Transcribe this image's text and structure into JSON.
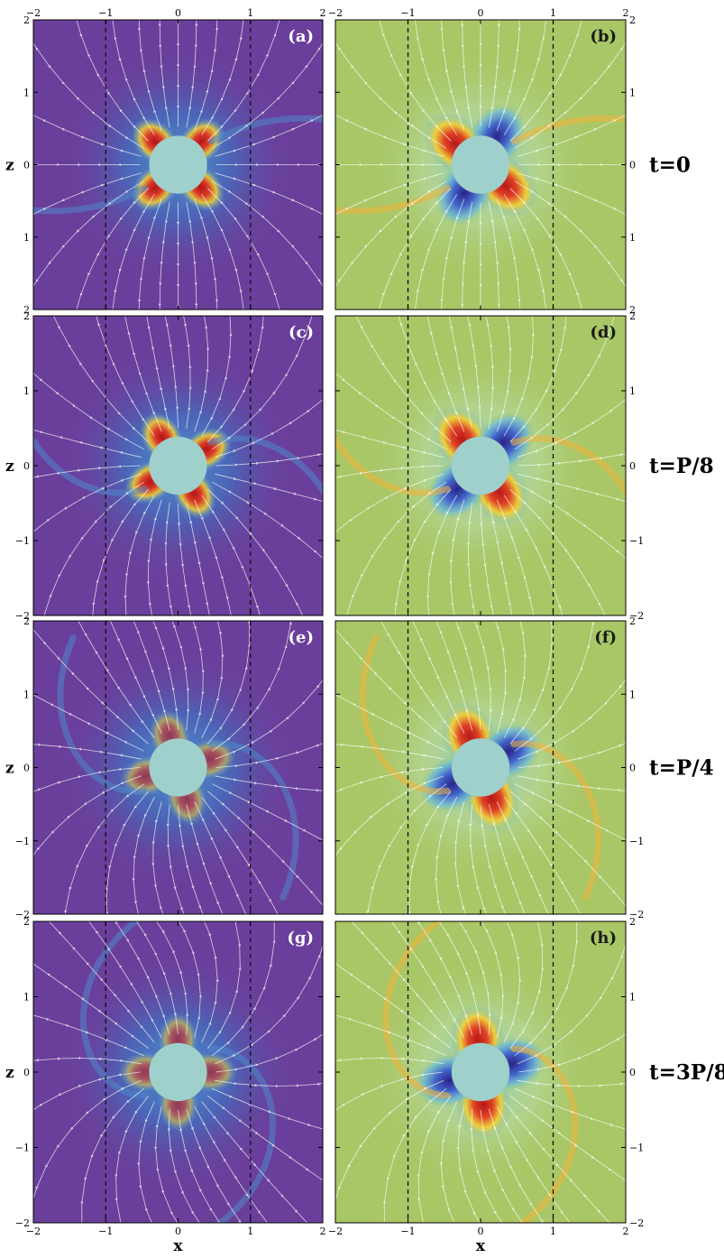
{
  "figure": {
    "x_axis_label": "x",
    "z_axis_label": "z",
    "time_labels": [
      "t=0",
      "t=P/8",
      "t=P/4",
      "t=3P/8"
    ],
    "colors": {
      "left_background": "#6a3f9b",
      "right_background": "#a9c766",
      "star": "#9fd0cc",
      "streamline": "#ffffff",
      "dashed_line": "#111111",
      "hot": "#d11e1e",
      "warm": "#f2c230",
      "cool": "#3a5fc8",
      "cold": "#2b1f8e"
    }
  },
  "chart_data": [
    {
      "type": "heatmap",
      "panel": "(a)",
      "column": "left",
      "time": "t=0",
      "xlim": [
        -2,
        2
      ],
      "ylim": [
        -2,
        2
      ],
      "x_ticks": [
        "-2",
        "-1",
        "0",
        "1",
        "2"
      ],
      "y_ticks": [
        "2",
        "1",
        "0",
        "1",
        "2"
      ],
      "dashed_lines_x": [
        -1,
        1
      ],
      "star_radius": 0.4,
      "twist_deg": 0,
      "colormap_background": "purple"
    },
    {
      "type": "heatmap",
      "panel": "(b)",
      "column": "right",
      "time": "t=0",
      "xlim": [
        -2,
        2
      ],
      "ylim": [
        -2,
        2
      ],
      "x_ticks": [
        "-2",
        "-1",
        "0",
        "1",
        "2"
      ],
      "y_ticks": [
        "2",
        "1",
        "0",
        "1",
        "2"
      ],
      "dashed_lines_x": [
        -1,
        1
      ],
      "star_radius": 0.4,
      "twist_deg": 0,
      "colormap_background": "green"
    },
    {
      "type": "heatmap",
      "panel": "(c)",
      "column": "left",
      "time": "t=P/8",
      "xlim": [
        -2,
        2
      ],
      "ylim": [
        -2,
        2
      ],
      "x_ticks": [
        "-2",
        "-1",
        "0",
        "1",
        "2"
      ],
      "y_ticks": [
        "2",
        "1",
        "0",
        "-1",
        "-2"
      ],
      "dashed_lines_x": [
        -1,
        1
      ],
      "star_radius": 0.4,
      "twist_deg": 15,
      "colormap_background": "purple"
    },
    {
      "type": "heatmap",
      "panel": "(d)",
      "column": "right",
      "time": "t=P/8",
      "xlim": [
        -2,
        2
      ],
      "ylim": [
        -2,
        2
      ],
      "x_ticks": [
        "-2",
        "-1",
        "0",
        "1",
        "2"
      ],
      "y_ticks": [
        "2",
        "1",
        "0",
        "-1",
        "-2"
      ],
      "dashed_lines_x": [
        -1,
        1
      ],
      "star_radius": 0.4,
      "twist_deg": 15,
      "colormap_background": "green"
    },
    {
      "type": "heatmap",
      "panel": "(e)",
      "column": "left",
      "time": "t=P/4",
      "xlim": [
        -2,
        2
      ],
      "ylim": [
        -2,
        2
      ],
      "x_ticks": [
        "-2",
        "-1",
        "0",
        "1",
        "2"
      ],
      "y_ticks": [
        "2",
        "1",
        "0",
        "-1",
        "-2"
      ],
      "dashed_lines_x": [
        -1,
        1
      ],
      "star_radius": 0.4,
      "twist_deg": 30,
      "colormap_background": "purple"
    },
    {
      "type": "heatmap",
      "panel": "(f)",
      "column": "right",
      "time": "t=P/4",
      "xlim": [
        -2,
        2
      ],
      "ylim": [
        -2,
        2
      ],
      "x_ticks": [
        "-2",
        "-1",
        "0",
        "1",
        "2"
      ],
      "y_ticks": [
        "2",
        "1",
        "0",
        "-1",
        "-2"
      ],
      "dashed_lines_x": [
        -1,
        1
      ],
      "star_radius": 0.4,
      "twist_deg": 30,
      "colormap_background": "green"
    },
    {
      "type": "heatmap",
      "panel": "(g)",
      "column": "left",
      "time": "t=3P/8",
      "xlim": [
        -2,
        2
      ],
      "ylim": [
        -2,
        2
      ],
      "x_ticks": [
        "-2",
        "-1",
        "0",
        "1",
        "2"
      ],
      "y_ticks": [
        "2",
        "1",
        "0",
        "-1",
        "-2"
      ],
      "dashed_lines_x": [
        -1,
        1
      ],
      "star_radius": 0.4,
      "twist_deg": 45,
      "colormap_background": "purple"
    },
    {
      "type": "heatmap",
      "panel": "(h)",
      "column": "right",
      "time": "t=3P/8",
      "xlim": [
        -2,
        2
      ],
      "ylim": [
        -2,
        2
      ],
      "x_ticks": [
        "-2",
        "-1",
        "0",
        "1",
        "2"
      ],
      "y_ticks": [
        "2",
        "1",
        "0",
        "-1",
        "-2"
      ],
      "dashed_lines_x": [
        -1,
        1
      ],
      "star_radius": 0.4,
      "twist_deg": 45,
      "colormap_background": "green"
    }
  ]
}
